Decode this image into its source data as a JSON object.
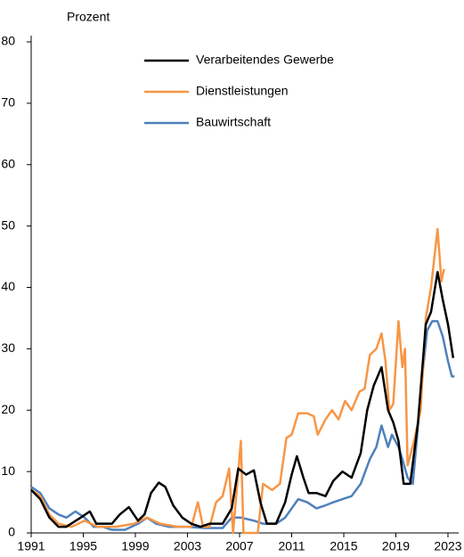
{
  "chart_data": {
    "type": "line",
    "ylabel": "Prozent",
    "xlim": [
      1991,
      2023
    ],
    "xticks": [
      1991,
      1995,
      1999,
      2003,
      2007,
      2011,
      2015,
      2019,
      2023
    ],
    "ylim": [
      0,
      80
    ],
    "yticks": [
      0,
      10,
      20,
      30,
      40,
      50,
      60,
      70,
      80
    ],
    "grid": false,
    "legend": "upper center",
    "series": [
      {
        "name": "Verarbeitendes Gewerbe",
        "color": "#000000",
        "x": [
          1991.0,
          1991.7,
          1992.4,
          1993.1,
          1993.7,
          1994.8,
          1995.5,
          1996.0,
          1997.2,
          1997.8,
          1998.5,
          1999.2,
          1999.7,
          2000.2,
          2000.8,
          2001.3,
          2001.9,
          2002.6,
          2003.3,
          2004.0,
          2004.7,
          2005.7,
          2006.4,
          2006.9,
          2007.5,
          2008.1,
          2008.6,
          2009.1,
          2009.8,
          2010.5,
          2011.0,
          2011.4,
          2011.9,
          2012.3,
          2012.9,
          2013.6,
          2014.2,
          2014.9,
          2015.6,
          2016.3,
          2016.8,
          2017.3,
          2017.9,
          2018.4,
          2018.8,
          2019.2,
          2019.6,
          2020.1,
          2020.7,
          2021.3,
          2021.7,
          2022.2,
          2022.6,
          2023.0,
          2023.4
        ],
        "values": [
          7,
          5.5,
          2.5,
          1,
          1,
          2.5,
          3.5,
          1.5,
          1.5,
          3,
          4.2,
          2,
          3,
          6.5,
          8.2,
          7.5,
          4.5,
          2.5,
          1.5,
          1,
          1.5,
          1.5,
          4,
          10.5,
          9.5,
          10.2,
          5,
          1.5,
          1.5,
          5,
          9.5,
          12.5,
          9,
          6.5,
          6.5,
          6,
          8.5,
          10,
          9,
          13,
          20,
          24,
          27,
          20,
          18,
          15,
          8,
          8,
          18,
          34,
          36,
          42.5,
          38,
          34,
          28.5
        ]
      },
      {
        "name": "Dienstleistungen",
        "color": "#f79646",
        "x": [
          1991.0,
          1991.7,
          1992.4,
          1993.1,
          1994.1,
          1995.1,
          1996.1,
          1997.5,
          1998.9,
          1999.9,
          2000.9,
          2002.3,
          2003.3,
          2003.8,
          2004.2,
          2004.7,
          2005.2,
          2005.7,
          2006.2,
          2006.5,
          2007.1,
          2007.3,
          2008.4,
          2008.8,
          2009.5,
          2010.1,
          2010.6,
          2011.0,
          2011.5,
          2012.2,
          2012.7,
          2013.0,
          2013.6,
          2014.1,
          2014.6,
          2015.1,
          2015.6,
          2016.2,
          2016.6,
          2017.0,
          2017.5,
          2017.9,
          2018.2,
          2018.5,
          2018.8,
          2019.2,
          2019.5,
          2019.7,
          2019.9,
          2020.4,
          2020.9,
          2021.3,
          2021.7,
          2022.2,
          2022.5,
          2022.7
        ],
        "values": [
          7,
          6,
          3,
          1.5,
          1,
          2,
          1,
          1,
          1.5,
          2.5,
          1.5,
          1,
          1,
          5,
          1,
          1,
          5,
          6,
          10.5,
          0,
          15,
          0,
          0,
          8,
          7,
          8,
          15.5,
          16,
          19.5,
          19.5,
          19,
          16,
          18.5,
          20,
          18.5,
          21.5,
          20,
          23,
          23.5,
          29,
          30,
          32.5,
          28,
          20,
          21,
          34.5,
          27,
          30,
          11,
          15,
          20,
          35,
          40,
          49.5,
          41,
          43
        ]
      },
      {
        "name": "Bauwirtschaft",
        "color": "#4f81bd",
        "x": [
          1991.0,
          1991.7,
          1992.4,
          1993.1,
          1993.7,
          1994.4,
          1995.1,
          1995.8,
          1996.5,
          1997.2,
          1998.2,
          1999.2,
          1999.9,
          2000.6,
          2001.6,
          2003.0,
          2004.3,
          2005.7,
          2006.4,
          2007.1,
          2008.1,
          2008.8,
          2009.8,
          2010.5,
          2011.0,
          2011.5,
          2012.2,
          2012.9,
          2013.6,
          2014.2,
          2014.9,
          2015.6,
          2016.3,
          2017.0,
          2017.5,
          2017.9,
          2018.4,
          2018.7,
          2019.2,
          2019.5,
          2019.9,
          2020.3,
          2020.6,
          2021.0,
          2021.4,
          2021.8,
          2022.2,
          2022.6,
          2023.0,
          2023.3,
          2023.5
        ],
        "values": [
          7.5,
          6.5,
          4,
          3,
          2.5,
          3.5,
          2.5,
          1,
          1,
          0.5,
          0.5,
          1.5,
          2.5,
          1.5,
          1,
          1,
          0.8,
          0.8,
          2.5,
          2.5,
          2,
          1.5,
          1.5,
          2.5,
          4,
          5.5,
          5,
          4,
          4.5,
          5,
          5.5,
          6,
          8,
          12,
          14,
          17.5,
          14,
          16,
          14,
          12,
          9,
          8,
          15,
          25,
          33,
          34.5,
          34.5,
          32,
          28,
          25.5,
          25.5
        ]
      }
    ]
  }
}
